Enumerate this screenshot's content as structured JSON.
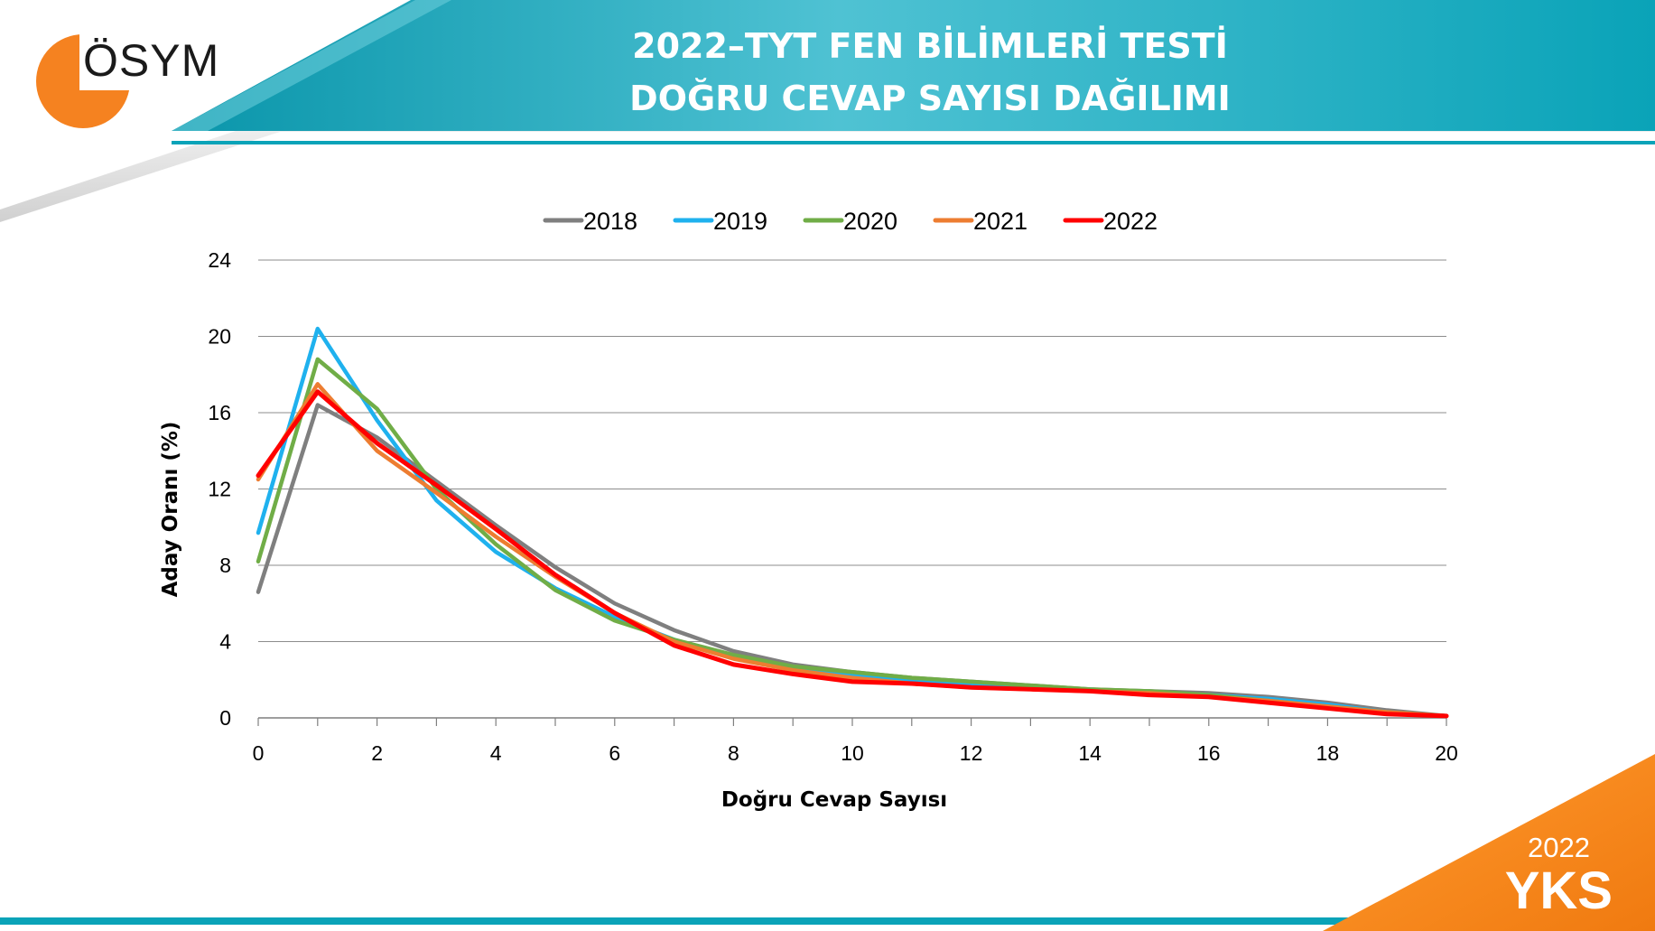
{
  "header": {
    "logo_text": "ÖSYM",
    "title_line1": "2022–TYT FEN BİLİMLERİ TESTİ",
    "title_line2": "DOĞRU CEVAP SAYISI DAĞILIMI"
  },
  "badge": {
    "year": "2022",
    "label": "YKS"
  },
  "colors": {
    "teal": "#0aa3b8",
    "orange": "#f58220",
    "grid": "#8c8c8c"
  },
  "chart_data": {
    "type": "line",
    "title": "",
    "xlabel": "Doğru Cevap Sayısı",
    "ylabel": "Aday Oranı (%)",
    "xlim": [
      0,
      20
    ],
    "ylim": [
      0,
      24
    ],
    "xticks": [
      0,
      2,
      4,
      6,
      8,
      10,
      12,
      14,
      16,
      18,
      20
    ],
    "yticks": [
      0,
      4,
      8,
      12,
      16,
      20,
      24
    ],
    "grid": true,
    "legend_position": "top",
    "x": [
      0,
      1,
      2,
      3,
      4,
      5,
      6,
      7,
      8,
      9,
      10,
      11,
      12,
      13,
      14,
      15,
      16,
      17,
      18,
      19,
      20
    ],
    "series": [
      {
        "name": "2018",
        "color": "#7f7f7f",
        "values": [
          6.6,
          16.4,
          14.7,
          12.4,
          10.1,
          7.9,
          6.0,
          4.6,
          3.5,
          2.8,
          2.4,
          2.1,
          1.9,
          1.7,
          1.5,
          1.4,
          1.3,
          1.1,
          0.8,
          0.4,
          0.1
        ]
      },
      {
        "name": "2019",
        "color": "#1fb1ee",
        "values": [
          9.7,
          20.4,
          15.6,
          11.4,
          8.7,
          6.8,
          5.3,
          4.1,
          3.2,
          2.6,
          2.2,
          2.0,
          1.8,
          1.6,
          1.5,
          1.3,
          1.2,
          1.0,
          0.7,
          0.3,
          0.1
        ]
      },
      {
        "name": "2020",
        "color": "#70ad47",
        "values": [
          8.2,
          18.8,
          16.2,
          12.0,
          9.1,
          6.7,
          5.1,
          4.1,
          3.3,
          2.7,
          2.4,
          2.1,
          1.9,
          1.7,
          1.5,
          1.4,
          1.2,
          0.9,
          0.6,
          0.3,
          0.1
        ]
      },
      {
        "name": "2021",
        "color": "#ed7d31",
        "values": [
          12.5,
          17.5,
          14.0,
          11.8,
          9.5,
          7.4,
          5.5,
          4.0,
          3.1,
          2.5,
          2.1,
          1.8,
          1.6,
          1.5,
          1.4,
          1.3,
          1.1,
          0.9,
          0.6,
          0.3,
          0.1
        ]
      },
      {
        "name": "2022",
        "color": "#ff0000",
        "values": [
          12.7,
          17.1,
          14.4,
          12.2,
          9.9,
          7.5,
          5.5,
          3.8,
          2.8,
          2.3,
          1.9,
          1.8,
          1.6,
          1.5,
          1.4,
          1.2,
          1.1,
          0.8,
          0.5,
          0.2,
          0.1
        ]
      }
    ]
  }
}
